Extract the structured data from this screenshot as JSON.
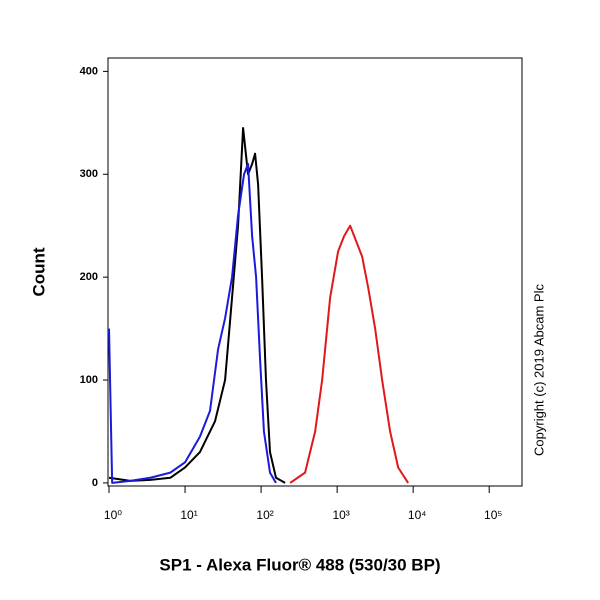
{
  "chart_data": {
    "type": "line",
    "x_label": "SP1 - Alexa Fluor® 488 (530/30 BP)",
    "y_label": "Count",
    "annotations": [
      "Copyright (c) 2019 Abcam Plc"
    ],
    "xscale": "log",
    "xlim": [
      0.97,
      270000
    ],
    "ylim": [
      -3,
      413
    ],
    "xticks": [
      {
        "value": 1,
        "label": "10⁰"
      },
      {
        "value": 10,
        "label": "10¹"
      },
      {
        "value": 100,
        "label": "10²"
      },
      {
        "value": 1000,
        "label": "10³"
      },
      {
        "value": 10000,
        "label": "10⁴"
      },
      {
        "value": 100000,
        "label": "10⁵"
      }
    ],
    "yticks": [
      0,
      100,
      200,
      300,
      400
    ],
    "series": [
      {
        "color": "#000000",
        "x": [
          1,
          1.9,
          3.5,
          6.4,
          10,
          15.7,
          24.8,
          33.6,
          41.5,
          49.8,
          58,
          67.4,
          76.2,
          83.4,
          91.4,
          103,
          116,
          131,
          157,
          207
        ],
        "values": [
          5,
          2,
          3,
          5,
          15,
          30,
          60,
          100,
          180,
          250,
          345,
          300,
          310,
          320,
          290,
          200,
          100,
          30,
          5,
          0
        ]
      },
      {
        "color": "#1a1adc",
        "x": [
          1,
          1.1,
          1.9,
          3.5,
          6.4,
          10,
          15.7,
          21.3,
          27.2,
          33.6,
          41.5,
          49.8,
          59.7,
          67.4,
          76.2,
          86,
          97,
          109,
          131,
          157
        ],
        "values": [
          150,
          0,
          2,
          5,
          10,
          20,
          45,
          70,
          130,
          160,
          200,
          260,
          300,
          310,
          240,
          200,
          120,
          50,
          10,
          0
        ]
      },
      {
        "color": "#e01818",
        "x": [
          241,
          379,
          514,
          635,
          809,
          1030,
          1237,
          1483,
          1778,
          2133,
          2559,
          3162,
          3908,
          4977,
          6353,
          8590
        ],
        "values": [
          0,
          10,
          50,
          100,
          180,
          225,
          240,
          250,
          235,
          220,
          190,
          150,
          100,
          50,
          15,
          0
        ]
      }
    ]
  }
}
